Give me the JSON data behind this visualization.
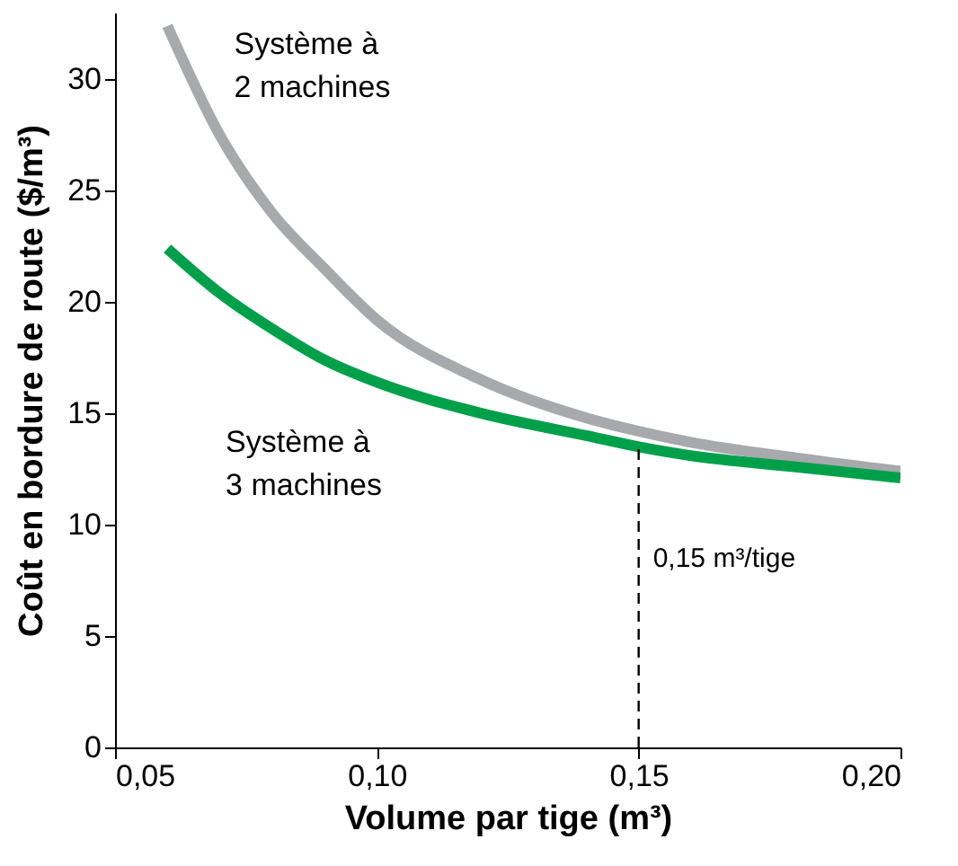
{
  "chart_data": {
    "type": "line",
    "xlabel": "Volume par tige (m³)",
    "ylabel": "Coût en bordure de route ($/m³)",
    "xlim": [
      0.05,
      0.2
    ],
    "ylim": [
      0,
      33
    ],
    "xticks": [
      {
        "value": 0.05,
        "label": "0,05"
      },
      {
        "value": 0.1,
        "label": "0,10"
      },
      {
        "value": 0.15,
        "label": "0,15"
      },
      {
        "value": 0.2,
        "label": "0,20"
      }
    ],
    "yticks": [
      0,
      5,
      10,
      15,
      20,
      25,
      30
    ],
    "x": [
      0.06,
      0.07,
      0.08,
      0.09,
      0.1,
      0.12,
      0.14,
      0.15,
      0.16,
      0.18,
      0.2
    ],
    "series": [
      {
        "name": "Système à\n2 machines",
        "color": "#a7a9ac",
        "values": [
          32.4,
          27.5,
          24.0,
          21.5,
          19.2,
          16.5,
          14.8,
          14.2,
          13.7,
          13.0,
          12.4
        ]
      },
      {
        "name": "Système à\n3 machines",
        "color": "#00a04b",
        "values": [
          22.4,
          20.4,
          18.8,
          17.4,
          16.4,
          15.0,
          14.0,
          13.5,
          13.1,
          12.6,
          12.1
        ]
      }
    ],
    "ref_lines": [
      {
        "axis": "x",
        "value": 0.15,
        "label": null,
        "line_style": "dashed",
        "color": "#000000"
      }
    ],
    "annotations": [
      {
        "text": "0,15 m³/tige",
        "x": 0.15,
        "y": 8.5
      }
    ],
    "grid": false,
    "marker": "none",
    "line_style": "solid"
  }
}
